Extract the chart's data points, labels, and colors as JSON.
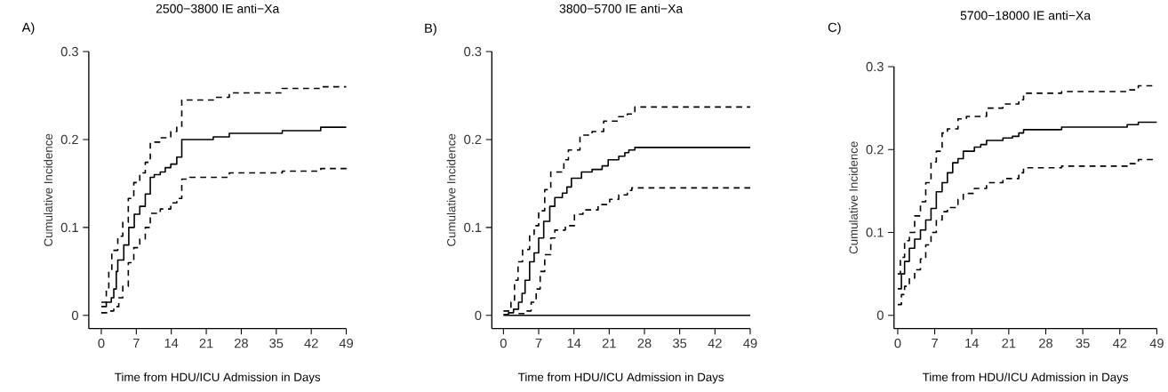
{
  "chart_data": [
    {
      "type": "step",
      "title": "2500−3800 IE anti−Xa",
      "xlabel": "Time from HDU/ICU Admission in Days",
      "ylabel": "Cumulative Incidence",
      "annotations": [
        "A)"
      ],
      "xlim": [
        -2.5,
        49
      ],
      "ylim": [
        -0.015,
        0.3
      ],
      "xticks": [
        0,
        7,
        14,
        21,
        28,
        35,
        42,
        49
      ],
      "yticks": [
        0,
        0.1,
        0.2,
        0.3
      ],
      "series": [
        {
          "color": "#000000",
          "line_style": "solid",
          "x": [
            0,
            1,
            2,
            2.5,
            3,
            3.3,
            4.5,
            5.5,
            6.6,
            7.7,
            8.8,
            9.8,
            10.6,
            11.8,
            12.8,
            13.9,
            15.1,
            16.1,
            22.4,
            25.6,
            36.2,
            43.9,
            49
          ],
          "values": [
            0.01,
            0.015,
            0.02,
            0.03,
            0.05,
            0.063,
            0.08,
            0.1,
            0.115,
            0.124,
            0.138,
            0.157,
            0.16,
            0.163,
            0.168,
            0.172,
            0.18,
            0.2,
            0.203,
            0.207,
            0.21,
            0.214,
            0.214
          ]
        },
        {
          "color": "#000000",
          "line_style": "dashed",
          "x": [
            0,
            1,
            1.5,
            2.1,
            3.3,
            4.3,
            5.4,
            6.5,
            7.7,
            8.8,
            9.8,
            11.8,
            13.9,
            15.1,
            16.1,
            22.4,
            25.6,
            36.2,
            43.9,
            49
          ],
          "values": [
            0.015,
            0.03,
            0.05,
            0.074,
            0.09,
            0.106,
            0.133,
            0.151,
            0.162,
            0.174,
            0.197,
            0.202,
            0.209,
            0.214,
            0.245,
            0.248,
            0.253,
            0.258,
            0.26,
            0.26
          ]
        },
        {
          "color": "#000000",
          "line_style": "dashed",
          "x": [
            0,
            1.5,
            2.5,
            3.5,
            4.3,
            5.4,
            6.5,
            7.7,
            8.8,
            9.8,
            11.8,
            13.9,
            15.1,
            16.1,
            17.7,
            25.6,
            36.2,
            43.9,
            49
          ],
          "values": [
            0.003,
            0.005,
            0.01,
            0.02,
            0.033,
            0.06,
            0.077,
            0.087,
            0.1,
            0.116,
            0.121,
            0.128,
            0.133,
            0.155,
            0.157,
            0.162,
            0.164,
            0.167,
            0.168
          ]
        }
      ]
    },
    {
      "type": "step",
      "title": "3800−5700 IE anti−Xa",
      "xlabel": "Time from HDU/ICU Admission in Days",
      "ylabel": "Cumulative Incidence",
      "annotations": [
        "B)"
      ],
      "xlim": [
        -2.3,
        49
      ],
      "ylim": [
        -0.015,
        0.3
      ],
      "xticks": [
        0,
        7,
        14,
        21,
        28,
        35,
        42,
        49
      ],
      "yticks": [
        0,
        0.1,
        0.2,
        0.3
      ],
      "ref_lines": [
        {
          "axis": "y",
          "value": 0,
          "color": "#000000"
        }
      ],
      "series": [
        {
          "color": "#000000",
          "line_style": "solid",
          "x": [
            0,
            1,
            2,
            3,
            3.7,
            4.3,
            5.2,
            6.1,
            7,
            8,
            9.2,
            10.2,
            11.7,
            12.6,
            13.5,
            15.5,
            17.6,
            19.6,
            20.8,
            22.9,
            24.1,
            24.9,
            26.1,
            49
          ],
          "values": [
            0.001,
            0.003,
            0.007,
            0.015,
            0.025,
            0.04,
            0.061,
            0.071,
            0.088,
            0.107,
            0.124,
            0.134,
            0.139,
            0.146,
            0.156,
            0.163,
            0.166,
            0.17,
            0.177,
            0.181,
            0.185,
            0.188,
            0.191,
            0.191
          ]
        },
        {
          "color": "#000000",
          "line_style": "dashed",
          "x": [
            0,
            1.5,
            2.2,
            2.9,
            3.8,
            5.2,
            6.1,
            7,
            8.2,
            9.4,
            12,
            12.9,
            15.2,
            17.6,
            19.9,
            22.9,
            24.6,
            26.1,
            49
          ],
          "values": [
            0.005,
            0.015,
            0.04,
            0.061,
            0.075,
            0.092,
            0.102,
            0.119,
            0.143,
            0.163,
            0.177,
            0.188,
            0.205,
            0.209,
            0.221,
            0.226,
            0.229,
            0.237,
            0.237
          ]
        },
        {
          "color": "#000000",
          "line_style": "dashed",
          "x": [
            3,
            4.5,
            5.5,
            6.5,
            7.3,
            8.2,
            9.4,
            10.2,
            12.3,
            14.1,
            15.8,
            18.8,
            21.1,
            22.9,
            24.6,
            25.5,
            49
          ],
          "values": [
            0.002,
            0.005,
            0.015,
            0.03,
            0.05,
            0.069,
            0.088,
            0.097,
            0.102,
            0.115,
            0.12,
            0.126,
            0.132,
            0.137,
            0.142,
            0.145,
            0.145
          ]
        }
      ]
    },
    {
      "type": "step",
      "title": "5700−18000 IE anti−Xa",
      "xlabel": "Time from HDU/ICU Admission in Days",
      "ylabel": "Cumulative Incidence",
      "annotations": [
        "C)"
      ],
      "xlim": [
        -0.7,
        49
      ],
      "ylim": [
        -0.016,
        0.3
      ],
      "xticks": [
        0,
        7,
        14,
        21,
        28,
        35,
        42,
        49
      ],
      "yticks": [
        0,
        0.1,
        0.2,
        0.3
      ],
      "series": [
        {
          "color": "#000000",
          "line_style": "solid",
          "x": [
            0,
            0.7,
            1.3,
            2.2,
            3.2,
            4.3,
            5.3,
            6.3,
            7.3,
            8.4,
            9.4,
            10.4,
            11.4,
            12.4,
            14.5,
            15.7,
            16.8,
            19.9,
            21.7,
            22.9,
            23.8,
            31,
            43.4,
            45.5,
            49
          ],
          "values": [
            0.032,
            0.05,
            0.065,
            0.081,
            0.092,
            0.103,
            0.115,
            0.129,
            0.149,
            0.16,
            0.172,
            0.184,
            0.189,
            0.198,
            0.203,
            0.206,
            0.211,
            0.214,
            0.216,
            0.22,
            0.224,
            0.227,
            0.23,
            0.233,
            0.233
          ]
        },
        {
          "color": "#000000",
          "line_style": "dashed",
          "x": [
            0,
            0.5,
            1.3,
            2.2,
            3.2,
            4.3,
            5.3,
            6.3,
            7.3,
            8.4,
            9.4,
            11.4,
            13,
            16.8,
            19.9,
            22.9,
            23.8,
            31,
            43.4,
            45.5,
            49
          ],
          "values": [
            0.05,
            0.07,
            0.09,
            0.1,
            0.12,
            0.137,
            0.16,
            0.185,
            0.198,
            0.22,
            0.225,
            0.237,
            0.24,
            0.25,
            0.255,
            0.26,
            0.268,
            0.27,
            0.272,
            0.277,
            0.277
          ]
        },
        {
          "color": "#000000",
          "line_style": "dashed",
          "x": [
            0,
            0.7,
            1.3,
            2.2,
            3.2,
            4.3,
            5.3,
            6.3,
            7.3,
            8.4,
            9.4,
            11.4,
            12.4,
            14.5,
            16.8,
            19.9,
            22.9,
            23.8,
            31,
            43.4,
            45.5,
            49
          ],
          "values": [
            0.013,
            0.025,
            0.035,
            0.045,
            0.055,
            0.068,
            0.085,
            0.1,
            0.115,
            0.125,
            0.13,
            0.14,
            0.147,
            0.153,
            0.16,
            0.165,
            0.172,
            0.178,
            0.18,
            0.183,
            0.188,
            0.188
          ]
        }
      ]
    }
  ]
}
